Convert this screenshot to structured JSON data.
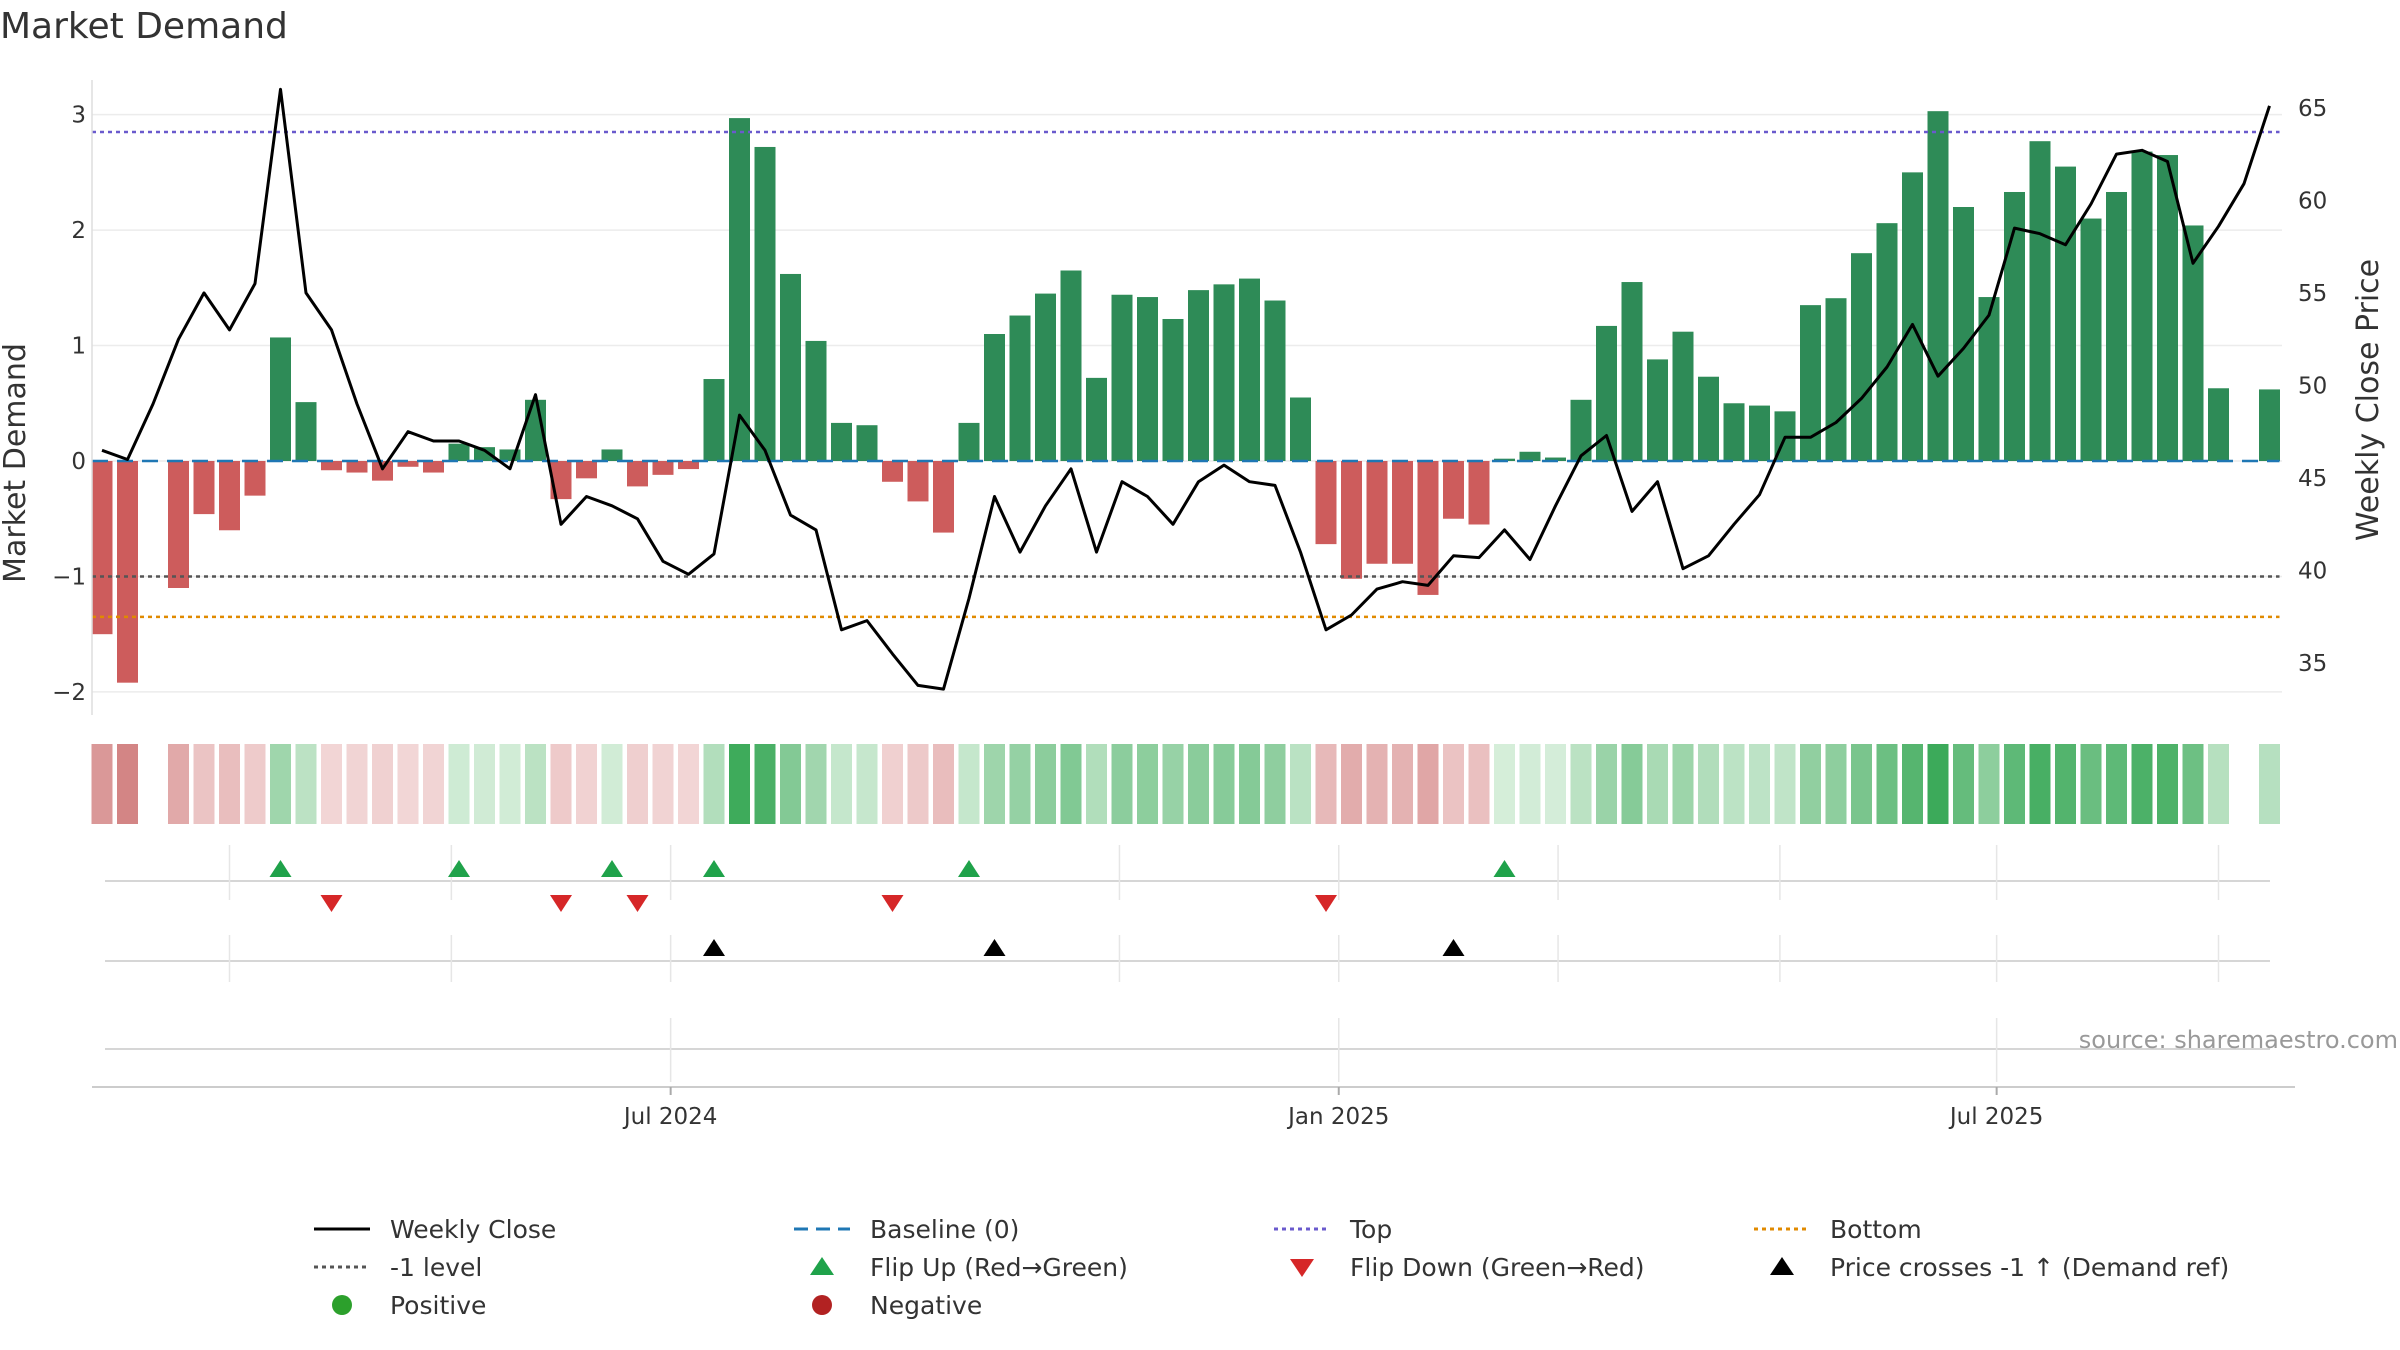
{
  "title": "Market Demand",
  "source": "source: sharemaestro.com",
  "colors": {
    "positive": "#2e8b57",
    "negative": "#cd5c5c",
    "close": "#000000",
    "baseline": "#1f77b4",
    "top": "#6a5acd",
    "minus1": "#555555",
    "bottom": "#e08a00",
    "flip_up": "#1fa24a",
    "flip_down": "#d62728",
    "cross": "#000000",
    "pos_dot": "#2ca02c",
    "neg_dot": "#b22222"
  },
  "chart_data": {
    "type": "bar+line",
    "title": "Market Demand",
    "ylabel_left": "Market Demand",
    "ylabel_right": "Weekly Close Price",
    "ylim_left": [
      -2.2,
      3.3
    ],
    "ylim_right": [
      32.2,
      66.5
    ],
    "yticks_left": [
      3,
      2,
      1,
      0,
      -1,
      -2
    ],
    "ytick_labels_left": [
      "3",
      "2",
      "1",
      "0",
      "−1",
      "−2"
    ],
    "yticks_right": [
      65,
      60,
      55,
      50,
      45,
      40,
      35
    ],
    "x_tick_labels": [
      {
        "label": "Jul 2024",
        "week": 22.3
      },
      {
        "label": "Jan 2025",
        "week": 48.5
      },
      {
        "label": "Jul 2025",
        "week": 74.3
      }
    ],
    "x_minor_weeks": [
      5,
      13.7,
      39.9,
      57.1,
      65.8,
      83
    ],
    "reference_lines": {
      "baseline": 0,
      "top": 2.85,
      "minus1": -1,
      "bottom": -1.35
    },
    "demand": [
      -1.5,
      -1.92,
      0,
      -1.1,
      -0.46,
      -0.6,
      -0.3,
      1.07,
      0.51,
      -0.08,
      -0.1,
      -0.17,
      -0.05,
      -0.1,
      0.15,
      0.12,
      0.1,
      0.53,
      -0.33,
      -0.15,
      0.1,
      -0.22,
      -0.12,
      -0.07,
      0.71,
      2.97,
      2.72,
      1.62,
      1.04,
      0.33,
      0.31,
      -0.18,
      -0.35,
      -0.62,
      0.33,
      1.1,
      1.26,
      1.45,
      1.65,
      0.72,
      1.44,
      1.42,
      1.23,
      1.48,
      1.53,
      1.58,
      1.39,
      0.55,
      -0.72,
      -1.02,
      -0.89,
      -0.89,
      -1.16,
      -0.5,
      -0.55,
      0.02,
      0.08,
      0.03,
      0.53,
      1.17,
      1.55,
      0.88,
      1.12,
      0.73,
      0.5,
      0.48,
      0.43,
      1.35,
      1.41,
      1.8,
      2.06,
      2.5,
      3.03,
      2.2,
      1.42,
      2.33,
      2.77,
      2.55,
      2.1,
      2.33,
      2.68,
      2.65,
      2.04,
      0.63,
      0,
      0.62
    ],
    "weekly_close": [
      46.5,
      46,
      49,
      52.5,
      55,
      53,
      55.5,
      66,
      55,
      53,
      49,
      45.5,
      47.5,
      47,
      47,
      46.5,
      45.5,
      49.5,
      42.5,
      44,
      43.5,
      42.8,
      40.5,
      39.8,
      40.9,
      48.4,
      46.5,
      43,
      42.2,
      36.8,
      37.3,
      35.5,
      33.8,
      33.6,
      38.5,
      44,
      41,
      43.5,
      45.5,
      41,
      44.8,
      44,
      42.5,
      44.8,
      45.7,
      44.8,
      44.6,
      41,
      36.8,
      37.6,
      39,
      39.4,
      39.2,
      40.8,
      40.7,
      42.2,
      40.6,
      43.5,
      46.2,
      47.3,
      43.2,
      44.8,
      40.1,
      40.8,
      42.5,
      44.1,
      47.2,
      47.2,
      48,
      49.3,
      51,
      53.3,
      50.5,
      52,
      53.8,
      58.5,
      58.2,
      57.6,
      59.8,
      62.5,
      62.7,
      62.1,
      56.6,
      58.6,
      60.9,
      65.1
    ]
  },
  "signals": {
    "flip_up_weeks": [
      7,
      14,
      20,
      24,
      34,
      55
    ],
    "flip_down_weeks": [
      9,
      18,
      21,
      31,
      48
    ],
    "price_cross_weeks": [
      24,
      35,
      53
    ]
  },
  "legend": {
    "weekly_close": "Weekly Close",
    "baseline": "Baseline (0)",
    "top": "Top",
    "bottom": "Bottom",
    "minus1": "-1 level",
    "flip_up": "Flip Up (Red→Green)",
    "flip_down": "Flip Down (Green→Red)",
    "price_cross": "Price crosses -1 ↑ (Demand ref)",
    "positive": "Positive",
    "negative": "Negative"
  }
}
